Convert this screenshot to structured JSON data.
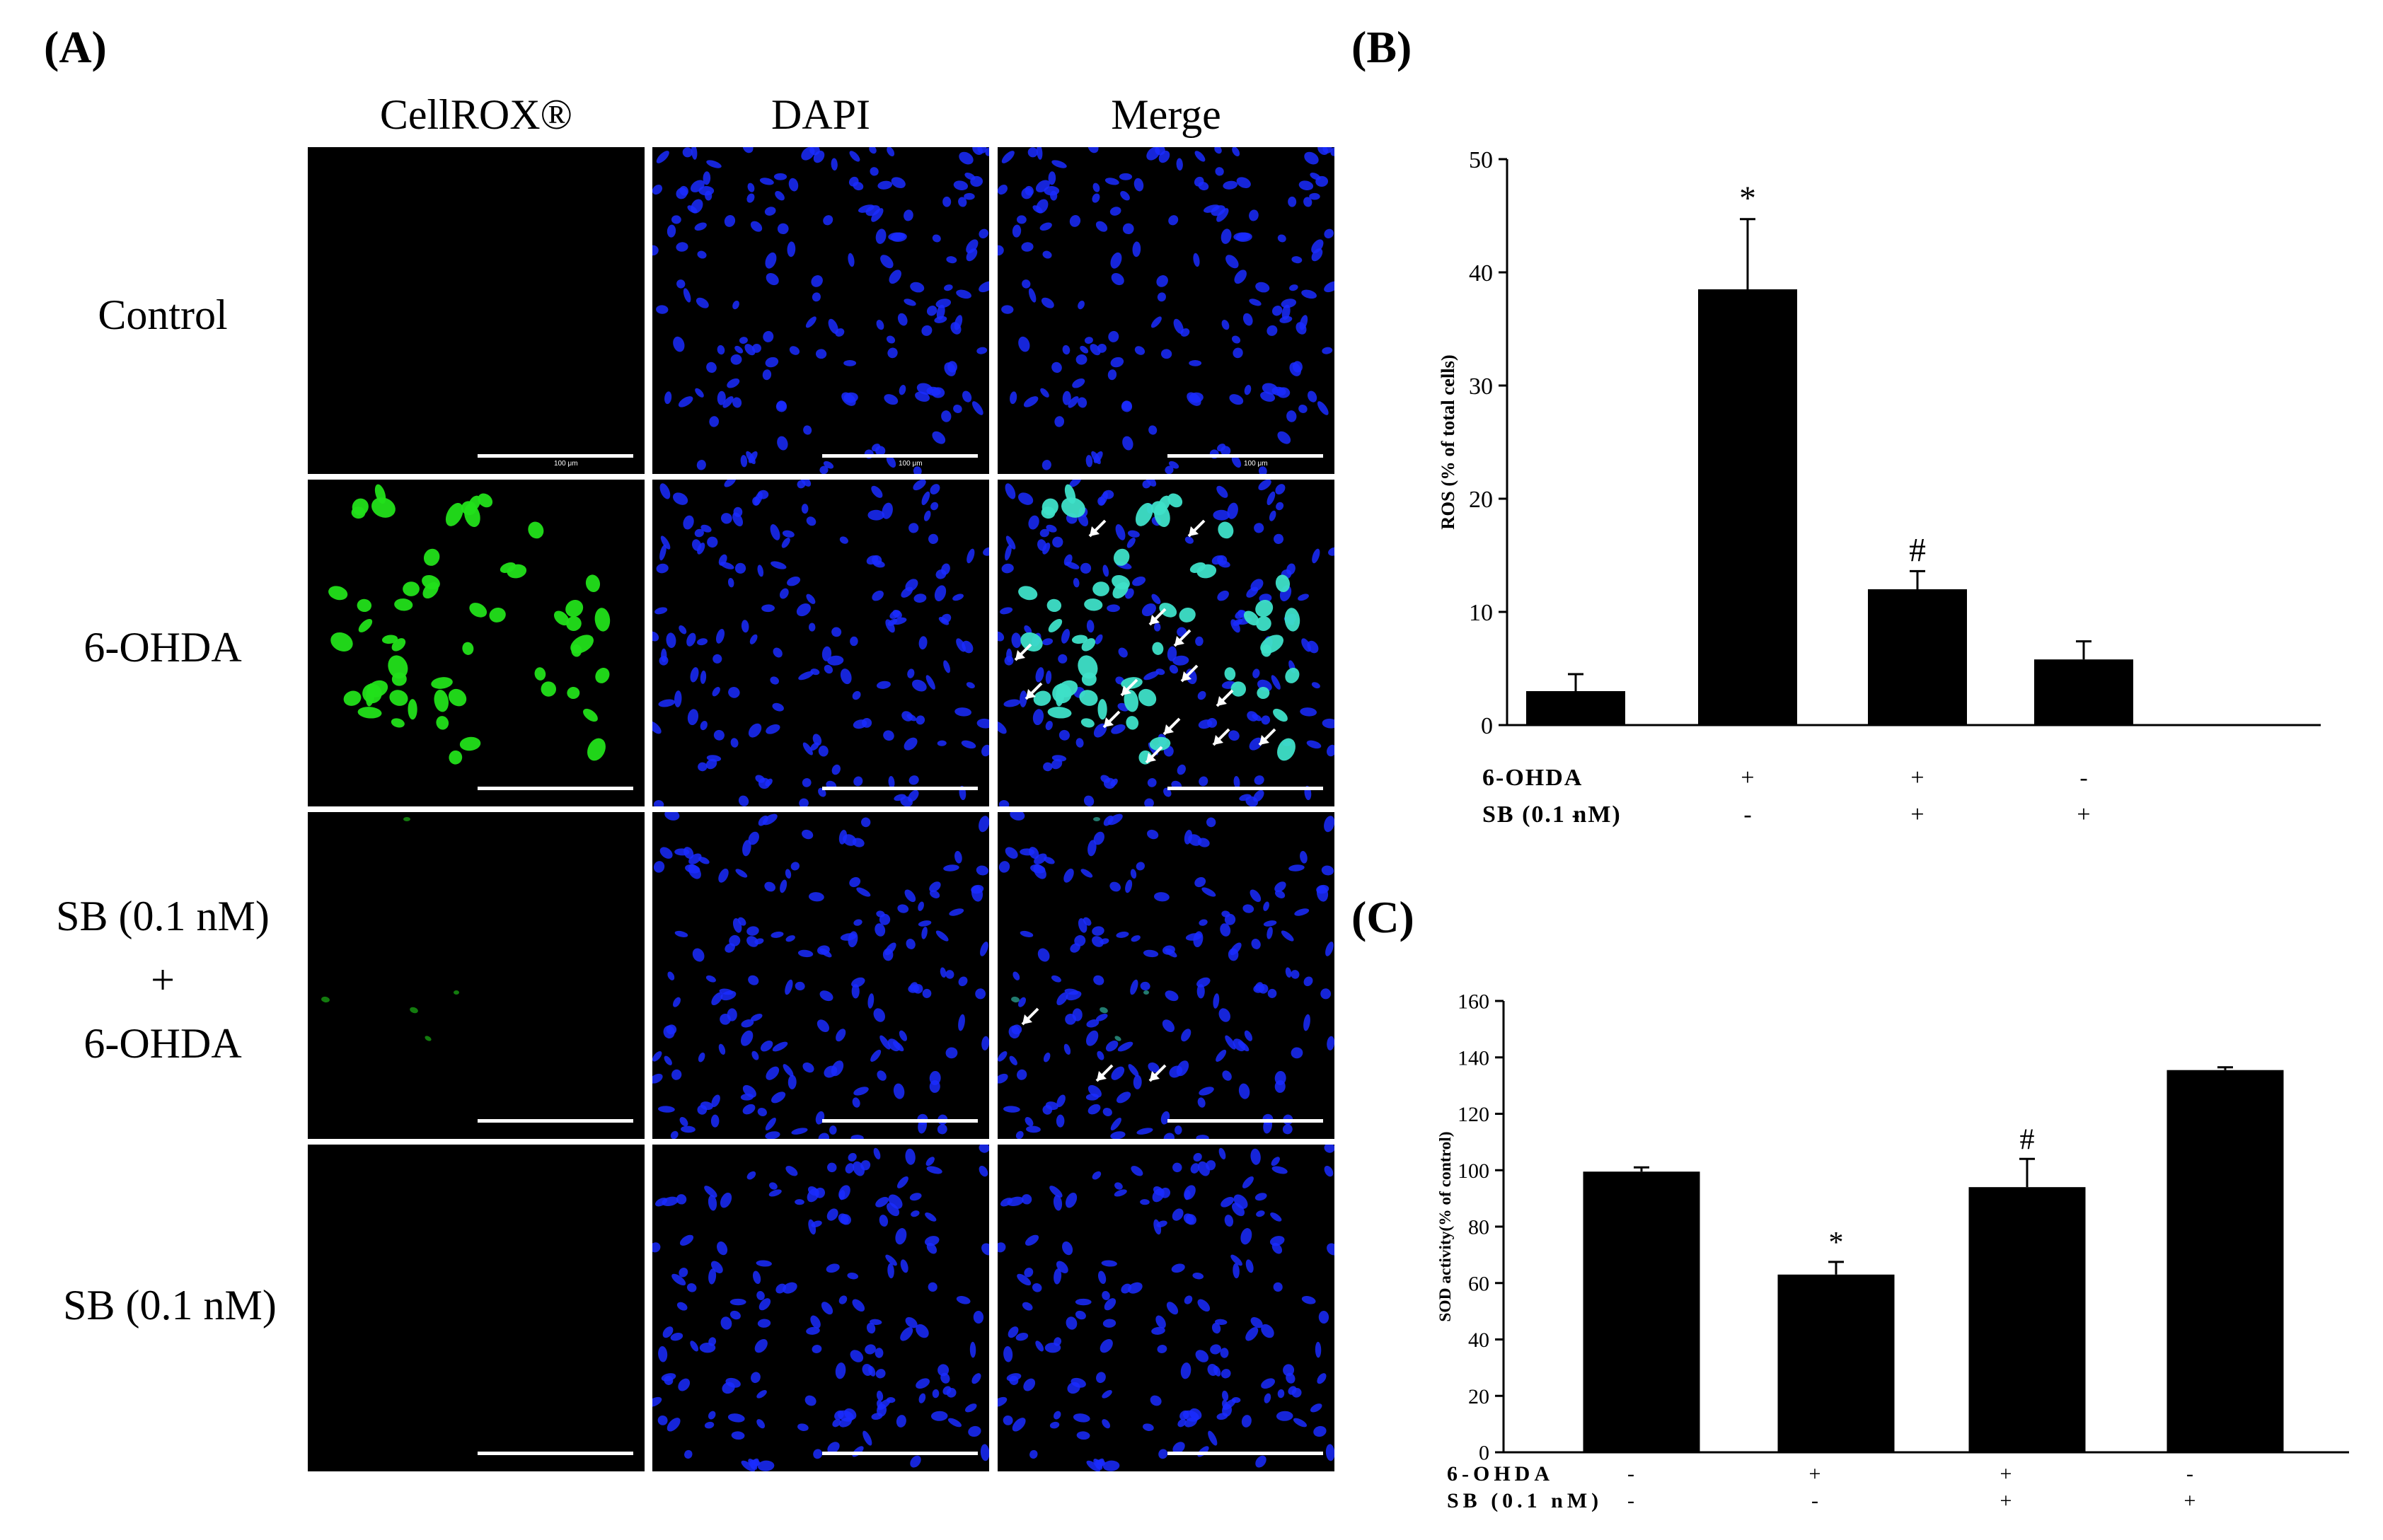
{
  "panels": {
    "a_label": "(A)",
    "b_label": "(B)",
    "c_label": "(C)"
  },
  "grid": {
    "columns": [
      "CellROX®",
      "DAPI",
      "Merge"
    ],
    "rows": [
      {
        "lines": [
          "Control"
        ]
      },
      {
        "lines": [
          "6-OHDA"
        ]
      },
      {
        "lines": [
          "SB (0.1 nM)",
          "+",
          "6-OHDA"
        ]
      },
      {
        "lines": [
          "SB (0.1 nM)"
        ]
      }
    ],
    "scale_text": "100 μm",
    "colors": {
      "cellrox": "#22e01a",
      "dapi": "#1a2cff",
      "merge": "#3ee0c8",
      "arrow": "#ffffff"
    }
  },
  "chart_data": [
    {
      "type": "bar",
      "panel": "B",
      "ylabel": "ROS (% of total cells)",
      "ylim": [
        0,
        50
      ],
      "yticks": [
        0,
        10,
        20,
        30,
        40,
        50
      ],
      "values": [
        3,
        38.5,
        12,
        5.8
      ],
      "errors": [
        1.5,
        6.2,
        1.6,
        1.6
      ],
      "annotations": [
        "",
        "*",
        "#",
        ""
      ],
      "treatment_rows": [
        {
          "label": "6-OHDA",
          "signs": [
            "-",
            "+",
            "+",
            "-"
          ]
        },
        {
          "label": "SB (0.1 nM)",
          "signs": [
            "-",
            "-",
            "+",
            "+"
          ]
        }
      ],
      "bar_color": "#000000"
    },
    {
      "type": "bar",
      "panel": "C",
      "ylabel": "SOD activity(% of control)",
      "ylim": [
        0,
        160
      ],
      "yticks": [
        0,
        20,
        40,
        60,
        80,
        100,
        120,
        140,
        160
      ],
      "values": [
        99.5,
        63,
        94,
        135.5
      ],
      "errors": [
        1.5,
        4.5,
        10,
        1
      ],
      "annotations": [
        "",
        "*",
        "#",
        ""
      ],
      "treatment_rows": [
        {
          "label": "6-OHDA",
          "signs": [
            "-",
            "+",
            "+",
            "-"
          ]
        },
        {
          "label": "SB (0.1 nM)",
          "signs": [
            "-",
            "-",
            "+",
            "+"
          ]
        }
      ],
      "bar_color": "#000000"
    }
  ]
}
